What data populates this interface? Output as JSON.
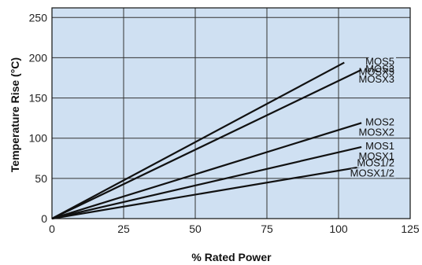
{
  "chart_data": {
    "type": "line",
    "title": "",
    "xlabel": "% Rated Power",
    "ylabel": "Temperature Rise (°C)",
    "xlim": [
      0,
      125
    ],
    "ylim": [
      0,
      262
    ],
    "x_ticks": [
      0,
      25,
      50,
      75,
      100,
      125
    ],
    "y_ticks": [
      0,
      50,
      100,
      150,
      200,
      250
    ],
    "grid": true,
    "plot_background": "#cfe0f2",
    "line_color": "#111111",
    "series": [
      {
        "name": "MOS5 / MOSX5",
        "labels": [
          "MOS5",
          "MOSX5"
        ],
        "x": [
          0,
          102
        ],
        "y": [
          0,
          194
        ]
      },
      {
        "name": "MOS3 / MOSX3",
        "labels": [
          "MOS3",
          "MOSX3"
        ],
        "x": [
          0,
          108
        ],
        "y": [
          0,
          185
        ]
      },
      {
        "name": "MOS2 / MOSX2",
        "labels": [
          "MOS2",
          "MOSX2"
        ],
        "x": [
          0,
          108
        ],
        "y": [
          0,
          119
        ]
      },
      {
        "name": "MOS1 / MOSX1",
        "labels": [
          "MOS1",
          "MOSX1"
        ],
        "x": [
          0,
          108
        ],
        "y": [
          0,
          89
        ]
      },
      {
        "name": "MOS1/2 / MOSX1/2",
        "labels": [
          "MOS1/2",
          "MOSX1/2"
        ],
        "x": [
          0,
          114
        ],
        "y": [
          0,
          68
        ]
      }
    ]
  }
}
